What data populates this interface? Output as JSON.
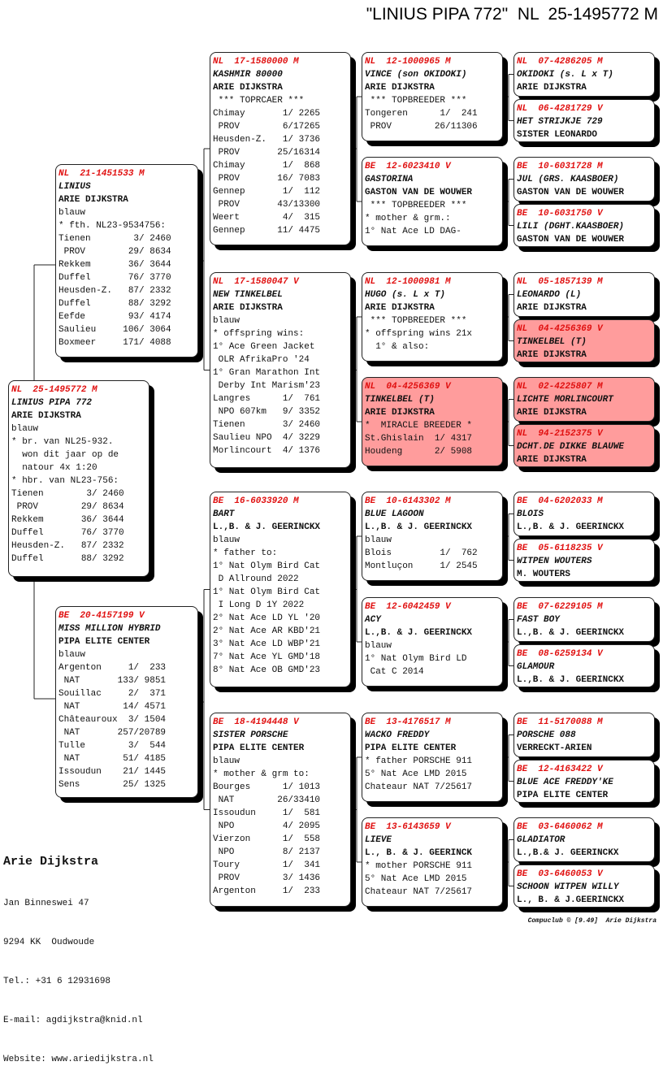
{
  "header": {
    "title": "\"LINIUS PIPA 772\"  NL  25-1495772 M"
  },
  "pedigree": [
    {
      "ring": "NL  25-1495772 M",
      "name": "LINIUS PIPA 772",
      "owner": "ARIE DIJKSTRA",
      "lines": [
        "blauw",
        "* br. van NL25-932.",
        "  won dit jaar op de",
        "  natour 4x 1:20",
        "* hbr. van NL23-756:",
        "Tienen        3/ 2460",
        " PROV        29/ 8634",
        "Rekkem       36/ 3644",
        "Duffel       76/ 3770",
        "Heusden-Z.   87/ 2332",
        "Duffel       88/ 3292"
      ],
      "highlight": false
    },
    {
      "ring": "NL  21-1451533 M",
      "name": "LINIUS",
      "owner": "ARIE DIJKSTRA",
      "lines": [
        "blauw",
        "* fth. NL23-9534756:",
        "Tienen        3/ 2460",
        " PROV        29/ 8634",
        "Rekkem       36/ 3644",
        "Duffel       76/ 3770",
        "Heusden-Z.   87/ 2332",
        "Duffel       88/ 3292",
        "Eefde        93/ 4174",
        "Saulieu     106/ 3064",
        "Boxmeer     171/ 4088"
      ],
      "highlight": false
    },
    {
      "ring": "BE  20-4157199 V",
      "name": "MISS MILLION HYBRID",
      "owner": "PIPA ELITE CENTER",
      "lines": [
        "blauw",
        "Argenton     1/  233",
        " NAT       133/ 9851",
        "Souillac     2/  371",
        " NAT        14/ 4571",
        "Châteauroux  3/ 1504",
        " NAT       257/20789",
        "Tulle        3/  544",
        " NAT        51/ 4185",
        "Issoudun    21/ 1445",
        "Sens        25/ 1325"
      ],
      "highlight": false
    },
    {
      "ring": "NL  17-1580000 M",
      "name": "KASHMIR 80000",
      "owner": "ARIE DIJKSTRA",
      "lines": [
        " *** TOPRCAER ***",
        "Chimay       1/ 2265",
        " PROV        6/17265",
        "Heusden-Z.   1/ 3736",
        " PROV       25/16314",
        "Chimay       1/  868",
        " PROV       16/ 7083",
        "Gennep       1/  112",
        " PROV       43/13300",
        "Weert        4/  315",
        "Gennep      11/ 4475"
      ],
      "highlight": false
    },
    {
      "ring": "NL  17-1580047 V",
      "name": "NEW TINKELBEL",
      "owner": "ARIE DIJKSTRA",
      "lines": [
        "blauw",
        "* offspring wins:",
        "1° Ace Green Jacket",
        " OLR AfrikaPro '24",
        "1° Gran Marathon Int",
        " Derby Int Marism'23",
        "Langres      1/  761",
        " NPO 607km   9/ 3352",
        "Tienen       3/ 2460",
        "Saulieu NPO  4/ 3229",
        "Morlincourt  4/ 1376"
      ],
      "highlight": false
    },
    {
      "ring": "BE  16-6033920 M",
      "name": "BART",
      "owner": "L.,B. & J. GEERINCKX",
      "lines": [
        "blauw",
        "* father to:",
        "1° Nat Olym Bird Cat",
        " D Allround 2022",
        "1° Nat Olym Bird Cat",
        " I Long D 1Y 2022",
        "2° Nat Ace LD YL '20",
        "2° Nat Ace AR KBD'21",
        "3° Nat Ace LD WBP'21",
        "7° Nat Ace YL GMD'18",
        "8° Nat Ace OB GMD'23"
      ],
      "highlight": false
    },
    {
      "ring": "BE  18-4194448 V",
      "name": "SISTER PORSCHE",
      "owner": "PIPA ELITE CENTER",
      "lines": [
        "blauw",
        "* mother & grm to:",
        "Bourges      1/ 1013",
        " NAT        26/33410",
        "Issoudun     1/  581",
        " NPO         4/ 2095",
        "Vierzon      1/  558",
        " NPO         8/ 2137",
        "Toury        1/  341",
        " PROV        3/ 1436",
        "Argenton     1/  233"
      ],
      "highlight": false
    },
    {
      "ring": "NL  12-1000965 M",
      "name": "VINCE (son OKIDOKI)",
      "owner": "ARIE DIJKSTRA",
      "lines": [
        " *** TOPBREEDER ***",
        "Tongeren      1/  241",
        " PROV        26/11306"
      ],
      "highlight": false
    },
    {
      "ring": "BE  12-6023410 V",
      "name": "GASTORINA",
      "owner": "GASTON VAN DE WOUWER",
      "lines": [
        " *** TOPBREEDER ***",
        "* mother & grm.:",
        "1° Nat Ace LD DAG-"
      ],
      "highlight": false
    },
    {
      "ring": "NL  12-1000981 M",
      "name": "HUGO (s. L x T)",
      "owner": "ARIE DIJKSTRA",
      "lines": [
        " *** TOPBREEDER ***",
        "* offspring wins 21x",
        "  1° & also:"
      ],
      "highlight": false
    },
    {
      "ring": "NL  04-4256369 V",
      "name": "TINKELBEL (T)",
      "owner": "ARIE DIJKSTRA",
      "lines": [
        "*  MIRACLE BREEDER *",
        "St.Ghislain  1/ 4317",
        "Houdeng      2/ 5908"
      ],
      "highlight": true
    },
    {
      "ring": "BE  10-6143302 M",
      "name": "BLUE LAGOON",
      "owner": "L.,B. & J. GEERINCKX",
      "lines": [
        "blauw",
        "Blois         1/  762",
        "Montluçon     1/ 2545"
      ],
      "highlight": false
    },
    {
      "ring": "BE  12-6042459 V",
      "name": "ACY",
      "owner": "L.,B. & J. GEERINCKX",
      "lines": [
        "blauw",
        "1° Nat Olym Bird LD",
        " Cat C 2014"
      ],
      "highlight": false
    },
    {
      "ring": "BE  13-4176517 M",
      "name": "WACKO FREDDY",
      "owner": "PIPA ELITE CENTER",
      "lines": [
        "* father PORSCHE 911",
        "5° Nat Ace LMD 2015",
        "Chateaur NAT 7/25617"
      ],
      "highlight": false
    },
    {
      "ring": "BE  13-6143659 V",
      "name": "LIEVE",
      "owner": "L., B. & J. GEERINCK",
      "lines": [
        "* mother PORSCHE 911",
        "5° Nat Ace LMD 2015",
        "Chateaur NAT 7/25617"
      ],
      "highlight": false
    },
    {
      "ring": "NL  07-4286205 M",
      "name": "OKIDOKI (s. L x T)",
      "owner": "ARIE DIJKSTRA",
      "lines": [],
      "highlight": false
    },
    {
      "ring": "NL  06-4281729 V",
      "name": "HET STRIJKJE 729",
      "owner": "SISTER LEONARDO",
      "lines": [],
      "highlight": false
    },
    {
      "ring": "BE  10-6031728 M",
      "name": "JUL (GRS. KAASBOER)",
      "owner": "GASTON VAN DE WOUWER",
      "lines": [],
      "highlight": false
    },
    {
      "ring": "BE  10-6031750 V",
      "name": "LILI (DGHT.KAASBOER)",
      "owner": "GASTON VAN DE WOUWER",
      "lines": [],
      "highlight": false
    },
    {
      "ring": "NL  05-1857139 M",
      "name": "LEONARDO (L)",
      "owner": "ARIE DIJKSTRA",
      "lines": [],
      "highlight": false
    },
    {
      "ring": "NL  04-4256369 V",
      "name": "TINKELBEL (T)",
      "owner": "ARIE DIJKSTRA",
      "lines": [],
      "highlight": true
    },
    {
      "ring": "NL  02-4225807 M",
      "name": "LICHTE MORLINCOURT",
      "owner": "ARIE DIJKSTRA",
      "lines": [],
      "highlight": true
    },
    {
      "ring": "NL  94-2152375 V",
      "name": "DCHT.DE DIKKE BLAUWE",
      "owner": "ARIE DIJKSTRA",
      "lines": [],
      "highlight": true
    },
    {
      "ring": "BE  04-6202033 M",
      "name": "BLOIS",
      "owner": "L.,B. & J. GEERINCKX",
      "lines": [],
      "highlight": false
    },
    {
      "ring": "BE  05-6118235 V",
      "name": "WITPEN WOUTERS",
      "owner": "M. WOUTERS",
      "lines": [],
      "highlight": false
    },
    {
      "ring": "BE  07-6229105 M",
      "name": "FAST BOY",
      "owner": "L.,B. & J. GEERINCKX",
      "lines": [],
      "highlight": false
    },
    {
      "ring": "BE  08-6259134 V",
      "name": "GLAMOUR",
      "owner": "L.,B. & J. GEERINCKX",
      "lines": [],
      "highlight": false
    },
    {
      "ring": "BE  11-5170088 M",
      "name": "PORSCHE 088",
      "owner": "VERRECKT-ARIEN",
      "lines": [],
      "highlight": false
    },
    {
      "ring": "BE  12-4163422 V",
      "name": "BLUE ACE FREDDY'KE",
      "owner": "PIPA ELITE CENTER",
      "lines": [],
      "highlight": false
    },
    {
      "ring": "BE  03-6460062 M",
      "name": "GLADIATOR",
      "owner": "L.,B.& J. GEERINCKX",
      "lines": [],
      "highlight": false
    },
    {
      "ring": "BE  03-6460053 V",
      "name": "SCHOON WITPEN WILLY",
      "owner": "L., B. & J.GEERINCKX",
      "lines": [],
      "highlight": false
    }
  ],
  "colors": {
    "ring": "#e01010",
    "highlight": "#ff9c9c"
  },
  "breeder": {
    "name": "Arie Dijkstra",
    "address": "Jan Binneswei 47",
    "city": "9294 KK  Oudwoude",
    "phone": "Tel.: +31 6 12931698",
    "email": "E-mail: agdijkstra@knid.nl",
    "website": "Website: www.ariedijkstra.nl"
  },
  "footer": {
    "credit": "Compuclub © [9.49]  Arie Dijkstra"
  }
}
